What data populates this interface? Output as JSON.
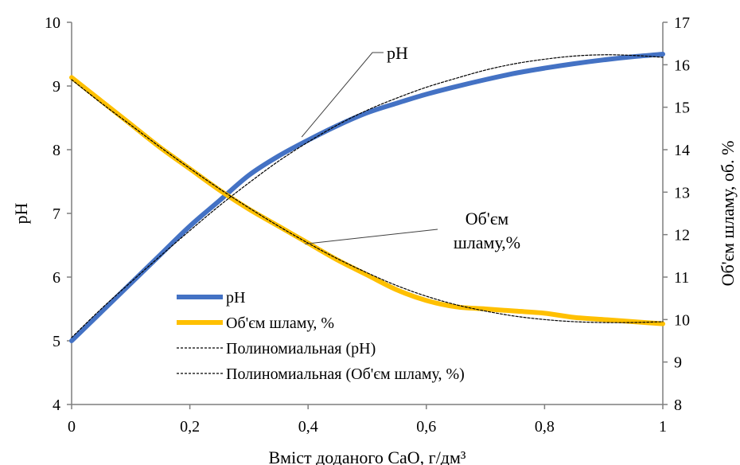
{
  "chart_data": {
    "type": "line",
    "xlabel": "Вміст доданого CaO, г/дм³",
    "ylabel_left": "pH",
    "ylabel_right": "Об'єм шламу, об. %",
    "x_ticks": [
      "0",
      "0,2",
      "0,4",
      "0,6",
      "0,8",
      "1"
    ],
    "y_left_ticks": [
      "4",
      "5",
      "6",
      "7",
      "8",
      "9",
      "10"
    ],
    "y_right_ticks": [
      "8",
      "9",
      "10",
      "11",
      "12",
      "13",
      "14",
      "15",
      "16",
      "17"
    ],
    "xlim": [
      0,
      1
    ],
    "ylim_left": [
      4,
      10
    ],
    "ylim_right": [
      8,
      17
    ],
    "grid": false,
    "legend_position": "bottom-center",
    "series": [
      {
        "name": "pH",
        "axis": "left",
        "color": "#4472C4",
        "style": "solid",
        "x": [
          0,
          0.05,
          0.1,
          0.15,
          0.2,
          0.25,
          0.3,
          0.35,
          0.4,
          0.45,
          0.5,
          0.55,
          0.6,
          0.65,
          0.7,
          0.75,
          0.8,
          0.85,
          0.9,
          0.95,
          1
        ],
        "y": [
          5.0,
          5.45,
          5.9,
          6.35,
          6.8,
          7.2,
          7.6,
          7.9,
          8.15,
          8.38,
          8.58,
          8.73,
          8.87,
          8.99,
          9.1,
          9.2,
          9.28,
          9.35,
          9.41,
          9.46,
          9.5
        ]
      },
      {
        "name": "Об'єм шламу, %",
        "axis": "right",
        "color": "#FFC000",
        "style": "solid",
        "x": [
          0,
          0.05,
          0.1,
          0.15,
          0.2,
          0.25,
          0.3,
          0.35,
          0.4,
          0.45,
          0.5,
          0.55,
          0.6,
          0.65,
          0.7,
          0.75,
          0.8,
          0.85,
          0.9,
          0.95,
          1
        ],
        "y": [
          15.7,
          15.15,
          14.6,
          14.05,
          13.55,
          13.05,
          12.6,
          12.2,
          11.8,
          11.4,
          11.05,
          10.7,
          10.45,
          10.3,
          10.25,
          10.2,
          10.15,
          10.05,
          10.0,
          9.95,
          9.9
        ]
      },
      {
        "name": "Полиномиальная (pH)",
        "axis": "left",
        "color": "#000000",
        "style": "dashed",
        "x": [
          0,
          0.05,
          0.1,
          0.15,
          0.2,
          0.25,
          0.3,
          0.35,
          0.4,
          0.45,
          0.5,
          0.55,
          0.6,
          0.65,
          0.7,
          0.75,
          0.8,
          0.85,
          0.9,
          0.95,
          1
        ],
        "y": [
          5.05,
          5.5,
          5.92,
          6.33,
          6.73,
          7.12,
          7.48,
          7.82,
          8.12,
          8.39,
          8.62,
          8.81,
          8.98,
          9.12,
          9.25,
          9.35,
          9.42,
          9.47,
          9.49,
          9.48,
          9.45
        ]
      },
      {
        "name": "Полиномиальная (Об'єм шламу, %)",
        "axis": "right",
        "color": "#000000",
        "style": "dashed",
        "x": [
          0,
          0.05,
          0.1,
          0.15,
          0.2,
          0.25,
          0.3,
          0.35,
          0.4,
          0.45,
          0.5,
          0.55,
          0.6,
          0.65,
          0.7,
          0.75,
          0.8,
          0.85,
          0.9,
          0.95,
          1
        ],
        "y": [
          15.65,
          15.1,
          14.58,
          14.06,
          13.56,
          13.08,
          12.63,
          12.2,
          11.8,
          11.43,
          11.1,
          10.8,
          10.55,
          10.35,
          10.2,
          10.08,
          10.0,
          9.95,
          9.93,
          9.93,
          9.95
        ]
      }
    ],
    "annotations": [
      {
        "text": "pH",
        "target_series": 0,
        "target_x": 0.4
      },
      {
        "lines": [
          "Об'єм",
          "шламу,%"
        ],
        "target_series": 1,
        "target_x": 0.4
      }
    ]
  }
}
